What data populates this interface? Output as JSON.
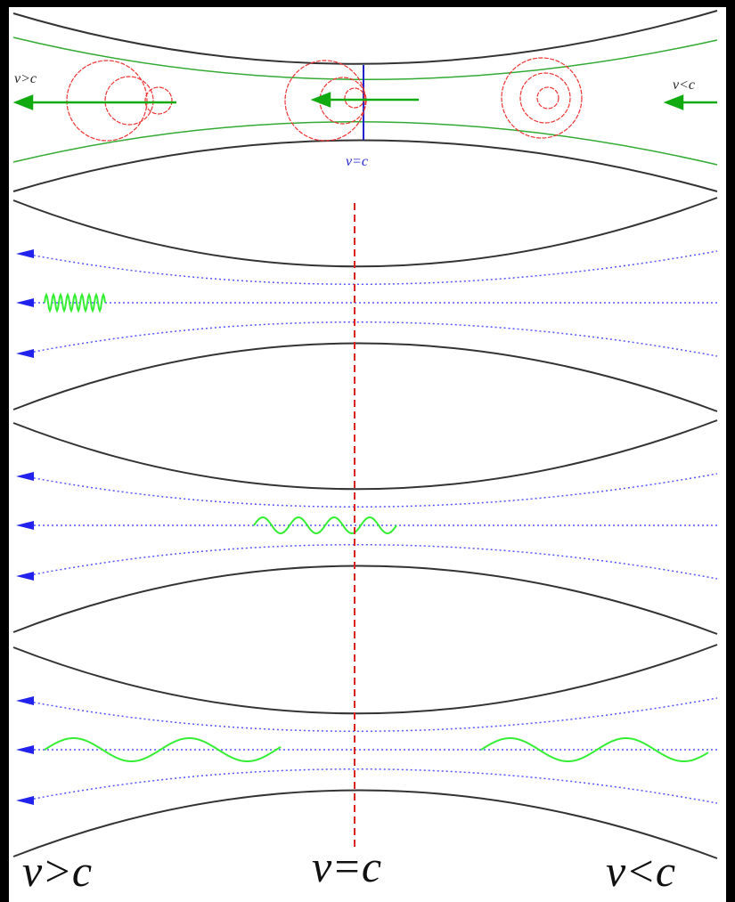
{
  "top_panel": {
    "left_label": "v>c",
    "center_label": "v=c",
    "right_label": "v<c"
  },
  "bottom_labels": {
    "left": "v>c",
    "center": "v=c",
    "right": "v<c"
  }
}
